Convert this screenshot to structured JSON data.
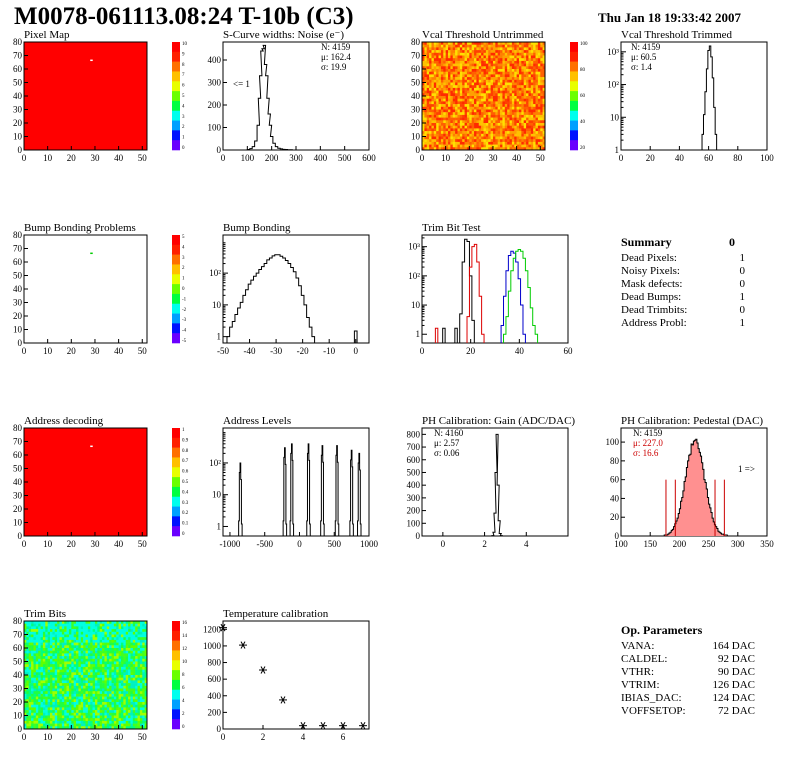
{
  "header": {
    "title": "M0078-061113.08:24 T-10b (C3)",
    "date": "Thu Jan 18 19:33:42 2007"
  },
  "colors": {
    "map_red": "#ff0000",
    "hist_black": "#000000",
    "trim_red": "#dd0000",
    "trim_blue": "#0000cc",
    "trim_green": "#00cc00",
    "stat_red": "#cc0000",
    "pedestal_fill": "#ff9090"
  },
  "chart_data": [
    {
      "id": "pixel-map",
      "type": "heatmap",
      "title": "Pixel Map",
      "xlim": [
        0,
        52
      ],
      "ylim": [
        0,
        80
      ],
      "xticks": [
        "0",
        "10",
        "20",
        "30",
        "40",
        "50"
      ],
      "yticks": [
        "0",
        "10",
        "20",
        "30",
        "40",
        "50",
        "60",
        "70",
        "80"
      ],
      "zlim": [
        0,
        10
      ],
      "palette_labels": [
        "10",
        "9",
        "8",
        "7",
        "6",
        "5",
        "4",
        "3",
        "2",
        "1",
        "0"
      ],
      "fill_value": 10,
      "outliers": [
        {
          "col": 28,
          "row": 67,
          "value": 0
        }
      ]
    },
    {
      "id": "scurve-widths",
      "type": "line",
      "title": "S-Curve widths: Noise (e⁻)",
      "xlim": [
        0,
        600
      ],
      "ylim": [
        0,
        480
      ],
      "xticks": [
        "0",
        "100",
        "200",
        "300",
        "400",
        "500",
        "600"
      ],
      "yticks": [
        "0",
        "100",
        "200",
        "300",
        "400"
      ],
      "stats": {
        "entries": "N: 4159",
        "mean": "μ: 162.4",
        "sigma": "σ: 19.9"
      },
      "annotation": "<= 1",
      "x": [
        95,
        105,
        115,
        125,
        135,
        145,
        150,
        155,
        160,
        165,
        170,
        175,
        180,
        185,
        190,
        195,
        200,
        210,
        220,
        230,
        240,
        250,
        260,
        270,
        280,
        290,
        300
      ],
      "values": [
        0,
        2,
        6,
        15,
        40,
        110,
        230,
        330,
        440,
        450,
        465,
        380,
        330,
        230,
        160,
        110,
        60,
        30,
        15,
        8,
        5,
        3,
        2,
        1,
        1,
        0,
        0
      ]
    },
    {
      "id": "vcal-untrimmed",
      "type": "heatmap",
      "title": "Vcal Threshold Untrimmed",
      "xlim": [
        0,
        52
      ],
      "ylim": [
        0,
        80
      ],
      "xticks": [
        "0",
        "10",
        "20",
        "30",
        "40",
        "50"
      ],
      "yticks": [
        "0",
        "10",
        "20",
        "30",
        "40",
        "50",
        "60",
        "70",
        "80"
      ],
      "palette_labels": [
        "100",
        "80",
        "60",
        "40",
        "20"
      ],
      "fill": "noisy-orange"
    },
    {
      "id": "vcal-trimmed",
      "type": "line",
      "title": "Vcal Threshold Trimmed",
      "log_y": true,
      "xlim": [
        0,
        100
      ],
      "ylim_decades": [
        0,
        3.3
      ],
      "xticks": [
        "0",
        "20",
        "40",
        "60",
        "80",
        "100"
      ],
      "yticks": [
        "1",
        "10",
        "10²",
        "10³"
      ],
      "stats": {
        "entries": "N: 4159",
        "mean": "μ: 60.5",
        "sigma": "σ: 1.4"
      },
      "x": [
        55,
        56,
        57,
        58,
        59,
        60,
        61,
        62,
        63,
        64,
        65,
        66,
        67
      ],
      "values": [
        1,
        3,
        12,
        60,
        300,
        1100,
        1500,
        700,
        160,
        20,
        3,
        1,
        0
      ]
    },
    {
      "id": "bump-bonding-problems",
      "type": "heatmap",
      "title": "Bump Bonding Problems",
      "xlim": [
        0,
        52
      ],
      "ylim": [
        0,
        80
      ],
      "xticks": [
        "0",
        "10",
        "20",
        "30",
        "40",
        "50"
      ],
      "yticks": [
        "0",
        "10",
        "20",
        "30",
        "40",
        "50",
        "60",
        "70",
        "80"
      ],
      "palette_labels": [
        "5",
        "4",
        "3",
        "2",
        "1",
        "0",
        "-1",
        "-2",
        "-3",
        "-4",
        "-5"
      ],
      "fill_value": null,
      "outliers": [
        {
          "col": 28,
          "row": 67,
          "value": 1
        }
      ]
    },
    {
      "id": "bump-bonding",
      "type": "line",
      "title": "Bump Bonding",
      "log_y": true,
      "xlim": [
        -50,
        5
      ],
      "ylim_decades": [
        -0.2,
        3.2
      ],
      "xticks": [
        "-50",
        "-40",
        "-30",
        "-20",
        "-10",
        "0"
      ],
      "yticks": [
        "1",
        "10",
        "10²"
      ],
      "x": [
        -49,
        -48,
        -47,
        -46,
        -45,
        -44,
        -43,
        -42,
        -41,
        -40,
        -39,
        -38,
        -37,
        -36,
        -35,
        -34,
        -33,
        -32,
        -31,
        -30,
        -29,
        -28,
        -27,
        -26,
        -25,
        -24,
        -23,
        -22,
        -21,
        -20,
        -19,
        -18,
        -17,
        -16,
        -15
      ],
      "values": [
        0,
        1,
        2,
        3,
        5,
        8,
        12,
        20,
        30,
        45,
        60,
        80,
        100,
        130,
        160,
        200,
        260,
        300,
        350,
        380,
        380,
        340,
        300,
        250,
        200,
        150,
        110,
        70,
        40,
        20,
        10,
        4,
        2,
        1,
        0
      ],
      "extra": {
        "x": 0,
        "value": 1
      }
    },
    {
      "id": "trim-bit-test",
      "type": "line",
      "title": "Trim Bit Test",
      "log_y": true,
      "xlim": [
        0,
        60
      ],
      "ylim_decades": [
        -0.3,
        3.4
      ],
      "xticks": [
        "0",
        "20",
        "40",
        "60"
      ],
      "yticks": [
        "1",
        "10",
        "10²",
        "10³"
      ],
      "series": [
        {
          "color_key": "hist_black",
          "x": [
            16,
            17,
            18,
            19,
            20,
            21
          ],
          "values": [
            5,
            300,
            1800,
            1500,
            100,
            3
          ],
          "low": [
            [
              9,
              1
            ],
            [
              14,
              1
            ]
          ]
        },
        {
          "color_key": "trim_red",
          "x": [
            19,
            20,
            21,
            22,
            23,
            24,
            25
          ],
          "values": [
            4,
            200,
            1000,
            1200,
            300,
            20,
            1
          ],
          "low": [
            [
              6,
              1
            ]
          ]
        },
        {
          "color_key": "trim_blue",
          "x": [
            33,
            34,
            35,
            36,
            37,
            38,
            39,
            40,
            41,
            42
          ],
          "values": [
            2,
            20,
            150,
            500,
            700,
            600,
            300,
            80,
            10,
            1
          ]
        },
        {
          "color_key": "trim_green",
          "x": [
            34,
            35,
            36,
            37,
            38,
            39,
            40,
            41,
            42,
            43,
            44,
            45,
            46,
            47
          ],
          "values": [
            1,
            4,
            30,
            150,
            400,
            700,
            800,
            700,
            400,
            150,
            40,
            8,
            2,
            1
          ]
        }
      ]
    },
    {
      "id": "address-decoding",
      "type": "heatmap",
      "title": "Address decoding",
      "xlim": [
        0,
        52
      ],
      "ylim": [
        0,
        80
      ],
      "xticks": [
        "0",
        "10",
        "20",
        "30",
        "40",
        "50"
      ],
      "yticks": [
        "0",
        "10",
        "20",
        "30",
        "40",
        "50",
        "60",
        "70",
        "80"
      ],
      "palette_labels": [
        "1",
        "0.9",
        "0.8",
        "0.7",
        "0.6",
        "0.5",
        "0.4",
        "0.3",
        "0.2",
        "0.1",
        "0"
      ],
      "fill_value": 1,
      "outliers": [
        {
          "col": 28,
          "row": 67,
          "value": 0
        }
      ]
    },
    {
      "id": "address-levels",
      "type": "line",
      "title": "Address Levels",
      "log_y": true,
      "xlim": [
        -1100,
        1000
      ],
      "ylim_decades": [
        -0.3,
        3.1
      ],
      "xticks": [
        "-1000",
        "-500",
        "0",
        "500",
        "1000"
      ],
      "yticks": [
        "1",
        "10",
        "10²"
      ],
      "peaks": [
        [
          -850,
          100
        ],
        [
          -210,
          300
        ],
        [
          -110,
          400
        ],
        [
          130,
          400
        ],
        [
          330,
          350
        ],
        [
          540,
          350
        ],
        [
          750,
          250
        ],
        [
          860,
          200
        ]
      ]
    },
    {
      "id": "ph-gain",
      "type": "line",
      "title": "PH Calibration: Gain (ADC/DAC)",
      "xlim": [
        -1,
        6
      ],
      "ylim": [
        0,
        850
      ],
      "xticks": [
        "0",
        "2",
        "4"
      ],
      "yticks": [
        "0",
        "100",
        "200",
        "300",
        "400",
        "500",
        "600",
        "700",
        "800"
      ],
      "stats": {
        "entries": "N: 4160",
        "mean": "μ: 2.57",
        "sigma": "σ: 0.06"
      },
      "x": [
        2.3,
        2.4,
        2.45,
        2.5,
        2.55,
        2.6,
        2.65,
        2.7,
        2.75,
        2.8,
        2.9
      ],
      "values": [
        0,
        3,
        30,
        180,
        500,
        800,
        400,
        120,
        20,
        3,
        0
      ]
    },
    {
      "id": "ph-pedestal",
      "type": "line",
      "title": "PH Calibration: Pedestal (DAC)",
      "xlim": [
        100,
        350
      ],
      "ylim": [
        0,
        115
      ],
      "xticks": [
        "100",
        "150",
        "200",
        "250",
        "300",
        "350"
      ],
      "yticks": [
        "0",
        "20",
        "40",
        "60",
        "80",
        "100"
      ],
      "stats": {
        "entries": "N: 4159",
        "mean": "μ: 227.0",
        "sigma": "σ: 16.6"
      },
      "annotation": "1 =>",
      "mean": 227.0,
      "sigma": 16.6,
      "peak": 100,
      "cut_lines": [
        177,
        193,
        261,
        277
      ],
      "cut_height": 60
    },
    {
      "id": "trim-bits",
      "type": "heatmap",
      "title": "Trim Bits",
      "xlim": [
        0,
        52
      ],
      "ylim": [
        0,
        80
      ],
      "xticks": [
        "0",
        "10",
        "20",
        "30",
        "40",
        "50"
      ],
      "yticks": [
        "0",
        "10",
        "20",
        "30",
        "40",
        "50",
        "60",
        "70",
        "80"
      ],
      "palette_labels": [
        "16",
        "14",
        "12",
        "10",
        "8",
        "6",
        "4",
        "2",
        "0"
      ],
      "fill": "noisy-green"
    },
    {
      "id": "temperature-calibration",
      "type": "scatter",
      "title": "Temperature calibration",
      "xlim": [
        0,
        7.3
      ],
      "ylim": [
        0,
        1300
      ],
      "xticks": [
        "0",
        "2",
        "4",
        "6"
      ],
      "yticks": [
        "0",
        "200",
        "400",
        "600",
        "800",
        "1000",
        "1200"
      ],
      "x": [
        0,
        1,
        2,
        3,
        4,
        5,
        6,
        7
      ],
      "values": [
        1220,
        1010,
        710,
        350,
        40,
        40,
        40,
        40
      ]
    }
  ],
  "summary": {
    "title": "Summary",
    "total": "0",
    "rows": [
      {
        "label": "Dead Pixels:",
        "value": "1"
      },
      {
        "label": "Noisy Pixels:",
        "value": "0"
      },
      {
        "label": "Mask defects:",
        "value": "0"
      },
      {
        "label": "Dead Bumps:",
        "value": "1"
      },
      {
        "label": "Dead Trimbits:",
        "value": "0"
      },
      {
        "label": "Address Probl:",
        "value": "1"
      }
    ]
  },
  "op_params": {
    "title": "Op. Parameters",
    "rows": [
      {
        "label": "VANA:",
        "value": "164 DAC"
      },
      {
        "label": "CALDEL:",
        "value": "92 DAC"
      },
      {
        "label": "VTHR:",
        "value": "90 DAC"
      },
      {
        "label": "VTRIM:",
        "value": "126 DAC"
      },
      {
        "label": "IBIAS_DAC:",
        "value": "124 DAC"
      },
      {
        "label": "VOFFSETOP:",
        "value": "72 DAC"
      }
    ]
  }
}
